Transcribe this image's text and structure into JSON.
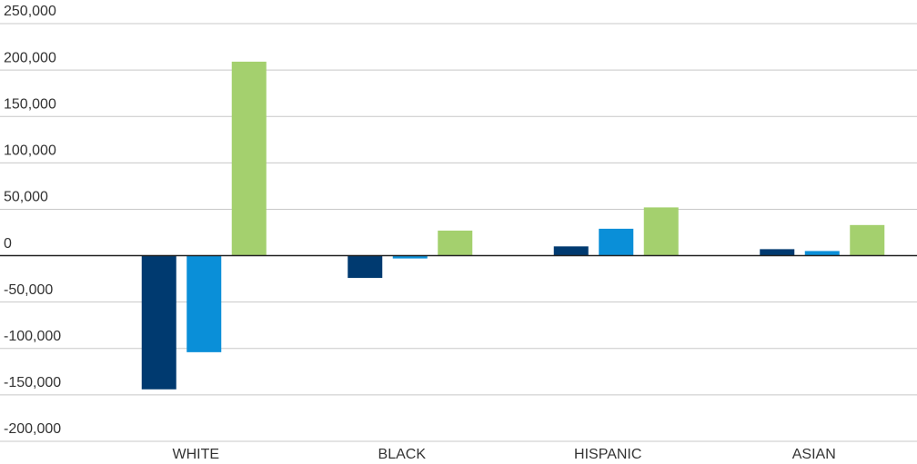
{
  "chart_data": {
    "type": "bar",
    "categories": [
      "WHITE",
      "BLACK",
      "HISPANIC",
      "ASIAN"
    ],
    "series": [
      {
        "color": "#003a70",
        "values": [
          -144000,
          -24000,
          10000,
          7000
        ]
      },
      {
        "color": "#0a8fd8",
        "values": [
          -104000,
          -3000,
          29000,
          5000
        ]
      },
      {
        "color": "#a4d06e",
        "values": [
          209000,
          27000,
          52000,
          33000
        ]
      }
    ],
    "ylim": [
      -200000,
      250000
    ],
    "yticks": [
      {
        "value": -200000,
        "label": "-200,000"
      },
      {
        "value": -150000,
        "label": "-150,000"
      },
      {
        "value": -100000,
        "label": "-100,000"
      },
      {
        "value": -50000,
        "label": "-50,000"
      },
      0,
      {
        "value": 50000,
        "label": "50,000"
      },
      {
        "value": 100000,
        "label": "100,000"
      },
      {
        "value": 150000,
        "label": "150,000"
      },
      {
        "value": 200000,
        "label": "200,000"
      },
      {
        "value": 250000,
        "label": "250,000"
      }
    ],
    "grid": true
  }
}
